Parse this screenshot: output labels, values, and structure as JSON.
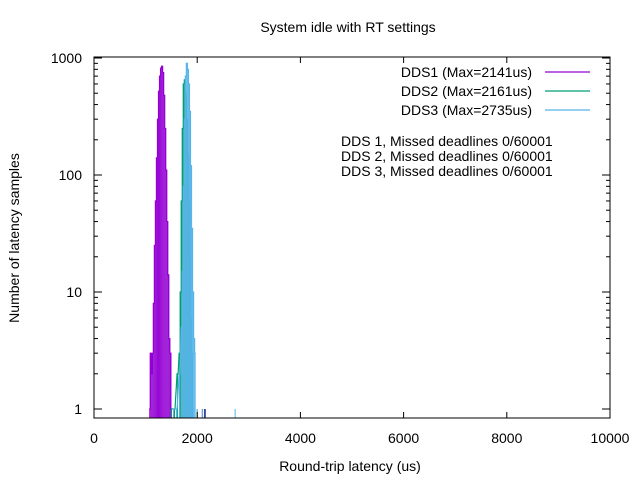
{
  "chart_data": {
    "type": "line",
    "title": "System idle with RT settings",
    "xlabel": "Round-trip latency (us)",
    "ylabel": "Number of latency samples",
    "xlim": [
      0,
      10000
    ],
    "ylim": [
      0.8,
      1000
    ],
    "yscale": "log",
    "x_ticks": [
      0,
      2000,
      4000,
      6000,
      8000,
      10000
    ],
    "x_tick_labels": [
      "0",
      "2000",
      "4000",
      "6000",
      "8000",
      "10000"
    ],
    "y_ticks": [
      1,
      10,
      100,
      1000
    ],
    "y_tick_labels": [
      "1",
      "10",
      "100",
      "1000"
    ],
    "grid": false,
    "legend_position": "top-right",
    "series": [
      {
        "name": "DDS1 (Max=2141us)",
        "color": "#9400d3",
        "points": [
          [
            1080,
            1
          ],
          [
            1100,
            3
          ],
          [
            1120,
            2
          ],
          [
            1140,
            3
          ],
          [
            1160,
            8
          ],
          [
            1180,
            25
          ],
          [
            1200,
            60
          ],
          [
            1220,
            140
          ],
          [
            1240,
            300
          ],
          [
            1260,
            520
          ],
          [
            1280,
            700
          ],
          [
            1300,
            820
          ],
          [
            1320,
            850
          ],
          [
            1340,
            750
          ],
          [
            1360,
            480
          ],
          [
            1380,
            250
          ],
          [
            1400,
            110
          ],
          [
            1420,
            40
          ],
          [
            1440,
            14
          ],
          [
            1460,
            4
          ],
          [
            1480,
            3
          ],
          [
            1500,
            1
          ],
          [
            2100,
            1
          ],
          [
            2141,
            1
          ]
        ]
      },
      {
        "name": "DDS2 (Max=2161us)",
        "color": "#009e73",
        "points": [
          [
            1500,
            1
          ],
          [
            1560,
            1
          ],
          [
            1620,
            2
          ],
          [
            1660,
            3
          ],
          [
            1680,
            10
          ],
          [
            1700,
            60
          ],
          [
            1720,
            250
          ],
          [
            1740,
            600
          ],
          [
            1760,
            650
          ],
          [
            1780,
            500
          ],
          [
            1800,
            300
          ],
          [
            1820,
            150
          ],
          [
            1840,
            60
          ],
          [
            1860,
            20
          ],
          [
            1880,
            6
          ],
          [
            1900,
            3
          ],
          [
            1920,
            1
          ],
          [
            2000,
            1
          ],
          [
            2161,
            1
          ]
        ]
      },
      {
        "name": "DDS3 (Max=2735us)",
        "color": "#56b4e9",
        "points": [
          [
            1540,
            1
          ],
          [
            1600,
            1
          ],
          [
            1660,
            2
          ],
          [
            1700,
            5
          ],
          [
            1720,
            15
          ],
          [
            1740,
            80
          ],
          [
            1760,
            300
          ],
          [
            1780,
            700
          ],
          [
            1800,
            900
          ],
          [
            1820,
            800
          ],
          [
            1840,
            600
          ],
          [
            1860,
            350
          ],
          [
            1880,
            120
          ],
          [
            1900,
            35
          ],
          [
            1920,
            10
          ],
          [
            1940,
            4
          ],
          [
            1960,
            3
          ],
          [
            2000,
            1
          ],
          [
            2100,
            1
          ],
          [
            2735,
            1
          ]
        ]
      }
    ],
    "annotations": [
      "DDS 1, Missed deadlines 0/60001",
      "DDS 2, Missed deadlines 0/60001",
      "DDS 3, Missed deadlines 0/60001"
    ]
  }
}
